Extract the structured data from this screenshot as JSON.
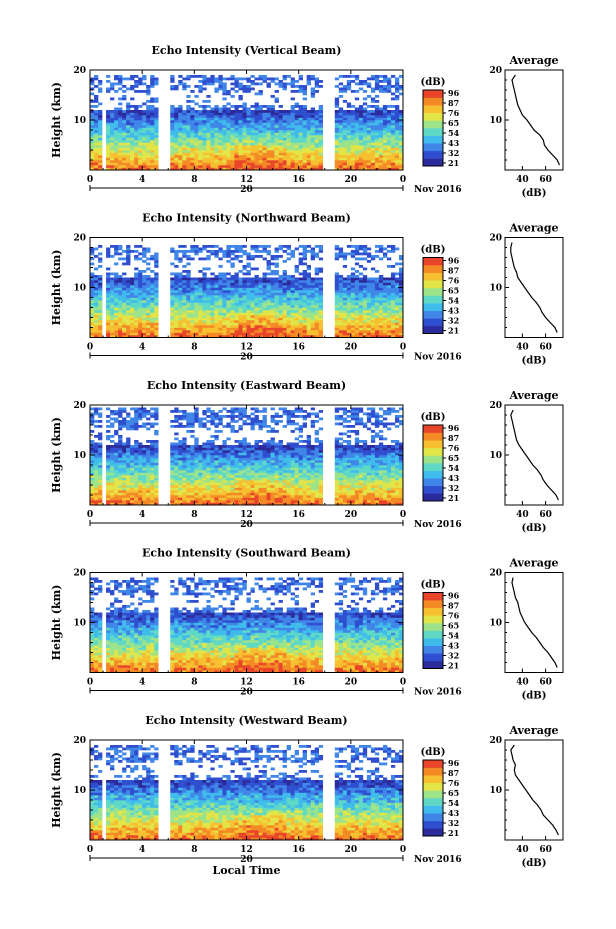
{
  "chart_data": [
    {
      "type": "heatmap",
      "title": "Echo Intensity (Vertical Beam)",
      "ylabel": "Height (km)",
      "x_ticks": [
        "0",
        "4",
        "8",
        "12",
        "16",
        "20",
        "0"
      ],
      "y_ticks": [
        "10",
        "20"
      ],
      "xlim": [
        0,
        24
      ],
      "ylim": [
        0,
        20
      ],
      "date_label": "20",
      "month_label": "Nov 2016",
      "colorbar": {
        "unit": "(dB)",
        "ticks": [
          "96",
          "87",
          "76",
          "65",
          "54",
          "43",
          "32",
          "21"
        ]
      },
      "data_gaps_hours": [
        [
          0.8,
          1.1
        ],
        [
          5.3,
          6.0
        ],
        [
          17.8,
          18.8
        ]
      ],
      "echo_top_km": 18.5,
      "profile": {
        "title": "Average",
        "xlabel": "(dB)",
        "x_ticks": [
          "40",
          "60"
        ],
        "y_ticks": [
          "10",
          "20"
        ],
        "xlim": [
          25,
          75
        ],
        "heights": [
          1,
          2,
          3,
          4,
          5,
          6,
          7,
          8,
          9,
          10,
          11,
          12,
          13,
          14,
          15,
          16,
          17,
          18,
          19
        ],
        "values": [
          72,
          70,
          66,
          62,
          59,
          58,
          55,
          50,
          47,
          44,
          40,
          38,
          36,
          35,
          34,
          33,
          32,
          31,
          34
        ]
      }
    },
    {
      "type": "heatmap",
      "title": "Echo Intensity (Northward Beam)",
      "ylabel": "Height (km)",
      "x_ticks": [
        "0",
        "4",
        "8",
        "12",
        "16",
        "20",
        "0"
      ],
      "y_ticks": [
        "10",
        "20"
      ],
      "xlim": [
        0,
        24
      ],
      "ylim": [
        0,
        20
      ],
      "date_label": "20",
      "month_label": "Nov 2016",
      "colorbar": {
        "unit": "(dB)",
        "ticks": [
          "96",
          "87",
          "76",
          "65",
          "54",
          "43",
          "32",
          "21"
        ]
      },
      "data_gaps_hours": [
        [
          0.8,
          1.1
        ],
        [
          5.3,
          6.0
        ],
        [
          17.8,
          18.8
        ]
      ],
      "echo_top_km": 18.0,
      "profile": {
        "title": "Average",
        "xlabel": "(dB)",
        "x_ticks": [
          "40",
          "60"
        ],
        "y_ticks": [
          "10",
          "20"
        ],
        "xlim": [
          25,
          75
        ],
        "heights": [
          1,
          2,
          3,
          4,
          5,
          6,
          7,
          8,
          9,
          10,
          11,
          12,
          13,
          14,
          15,
          16,
          17,
          18,
          19
        ],
        "values": [
          70,
          68,
          64,
          60,
          57,
          55,
          52,
          48,
          45,
          42,
          39,
          36,
          35,
          33,
          32,
          31,
          30,
          30,
          31
        ]
      }
    },
    {
      "type": "heatmap",
      "title": "Echo Intensity (Eastward Beam)",
      "ylabel": "Height (km)",
      "x_ticks": [
        "0",
        "4",
        "8",
        "12",
        "16",
        "20",
        "0"
      ],
      "y_ticks": [
        "10",
        "20"
      ],
      "xlim": [
        0,
        24
      ],
      "ylim": [
        0,
        20
      ],
      "date_label": "20",
      "month_label": "Nov 2016",
      "colorbar": {
        "unit": "(dB)",
        "ticks": [
          "96",
          "87",
          "76",
          "65",
          "54",
          "43",
          "32",
          "21"
        ]
      },
      "data_gaps_hours": [
        [
          0.8,
          1.1
        ],
        [
          5.3,
          6.0
        ],
        [
          17.8,
          18.8
        ]
      ],
      "echo_top_km": 19.0,
      "profile": {
        "title": "Average",
        "xlabel": "(dB)",
        "x_ticks": [
          "40",
          "60"
        ],
        "y_ticks": [
          "10",
          "20"
        ],
        "xlim": [
          25,
          75
        ],
        "heights": [
          1,
          2,
          3,
          4,
          5,
          6,
          7,
          8,
          9,
          10,
          11,
          12,
          13,
          14,
          15,
          16,
          17,
          18,
          19
        ],
        "values": [
          71,
          69,
          65,
          61,
          58,
          56,
          53,
          49,
          46,
          43,
          40,
          37,
          35,
          34,
          33,
          32,
          31,
          30,
          32
        ]
      }
    },
    {
      "type": "heatmap",
      "title": "Echo Intensity (Southward Beam)",
      "ylabel": "Height (km)",
      "x_ticks": [
        "0",
        "4",
        "8",
        "12",
        "16",
        "20",
        "0"
      ],
      "y_ticks": [
        "10",
        "20"
      ],
      "xlim": [
        0,
        24
      ],
      "ylim": [
        0,
        20
      ],
      "date_label": "20",
      "month_label": "Nov 2016",
      "colorbar": {
        "unit": "(dB)",
        "ticks": [
          "96",
          "87",
          "76",
          "65",
          "54",
          "43",
          "32",
          "21"
        ]
      },
      "data_gaps_hours": [
        [
          0.8,
          1.1
        ],
        [
          5.3,
          6.0
        ],
        [
          17.8,
          18.8
        ]
      ],
      "echo_top_km": 18.5,
      "profile": {
        "title": "Average",
        "xlabel": "(dB)",
        "x_ticks": [
          "40",
          "60"
        ],
        "y_ticks": [
          "10",
          "20"
        ],
        "xlim": [
          25,
          75
        ],
        "heights": [
          1,
          2,
          3,
          4,
          5,
          6,
          7,
          8,
          9,
          10,
          11,
          12,
          13,
          14,
          15,
          16,
          17,
          18,
          19
        ],
        "values": [
          70,
          68,
          65,
          62,
          58,
          55,
          52,
          48,
          45,
          42,
          40,
          38,
          37,
          36,
          34,
          33,
          32,
          31,
          32
        ]
      }
    },
    {
      "type": "heatmap",
      "title": "Echo Intensity (Westward Beam)",
      "ylabel": "Height (km)",
      "x_ticks": [
        "0",
        "4",
        "8",
        "12",
        "16",
        "20",
        "0"
      ],
      "y_ticks": [
        "10",
        "20"
      ],
      "xlim": [
        0,
        24
      ],
      "ylim": [
        0,
        20
      ],
      "date_label": "20",
      "month_label": "Nov 2016",
      "xlabel": "Local Time",
      "colorbar": {
        "unit": "(dB)",
        "ticks": [
          "96",
          "87",
          "76",
          "65",
          "54",
          "43",
          "32",
          "21"
        ]
      },
      "data_gaps_hours": [
        [
          0.8,
          1.1
        ],
        [
          5.3,
          6.0
        ],
        [
          17.8,
          18.8
        ]
      ],
      "echo_top_km": 18.5,
      "profile": {
        "title": "Average",
        "xlabel": "(dB)",
        "x_ticks": [
          "40",
          "60"
        ],
        "y_ticks": [
          "10",
          "20"
        ],
        "xlim": [
          25,
          75
        ],
        "heights": [
          1,
          2,
          3,
          4,
          5,
          6,
          7,
          8,
          9,
          10,
          11,
          12,
          13,
          14,
          15,
          16,
          17,
          18,
          19
        ],
        "values": [
          71,
          69,
          66,
          62,
          58,
          56,
          53,
          49,
          46,
          43,
          40,
          37,
          34,
          33,
          34,
          32,
          31,
          30,
          33
        ]
      }
    }
  ],
  "colors": {
    "scale": [
      "#2c2b9b",
      "#2f4fd0",
      "#3f86e8",
      "#3fbcec",
      "#5fd9c6",
      "#9de38a",
      "#e2e548",
      "#f7c030",
      "#f48a25",
      "#e8452a"
    ]
  }
}
